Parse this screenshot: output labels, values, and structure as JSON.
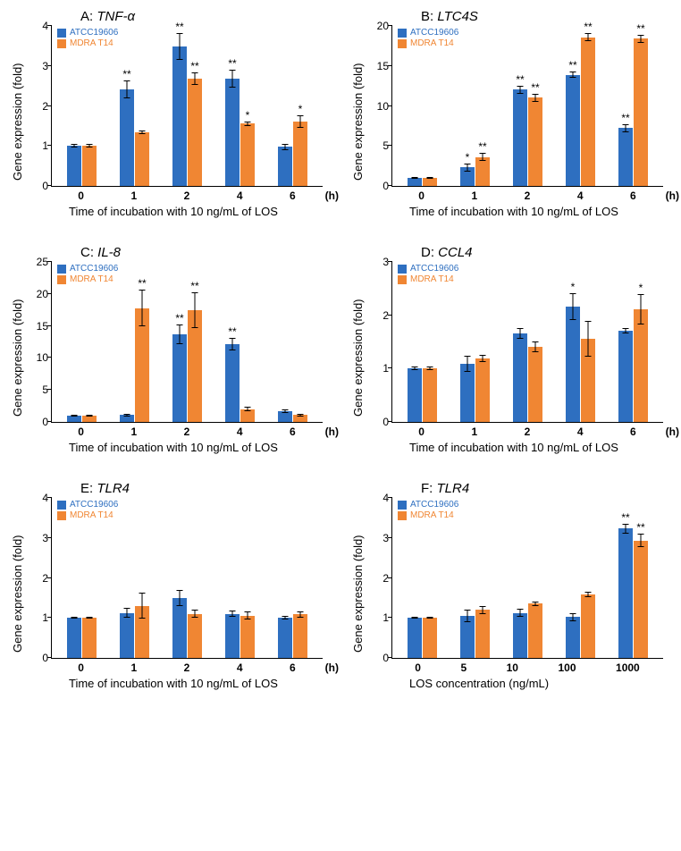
{
  "colors": {
    "series1": "#2e6fc0",
    "series2": "#f08633",
    "axis": "#000000",
    "error": "#000000",
    "legend1_text": "#2e6fc0",
    "legend2_text": "#f08633"
  },
  "legend": {
    "s1": "ATCC19606",
    "s2": "MDRA T14"
  },
  "common": {
    "ylabel": "Gene expression (fold)",
    "xtitle_time": "Time of incubation with 10 ng/mL of LOS",
    "xtitle_conc": "LOS concentration (ng/mL)",
    "x_unit_time": "(h)"
  },
  "panels": [
    {
      "id": "A",
      "title_prefix": "A: ",
      "title_gene": "TNF-α",
      "ymax": 4,
      "ystep": 1,
      "x_cats": [
        "0",
        "1",
        "2",
        "4",
        "6"
      ],
      "x_unit": "(h)",
      "xtitle_key": "xtitle_time",
      "data": [
        {
          "s1": 1.0,
          "e1": 0.05,
          "s2": 1.0,
          "e2": 0.05,
          "sig1": "",
          "sig2": ""
        },
        {
          "s1": 2.4,
          "e1": 0.22,
          "s2": 1.33,
          "e2": 0.05,
          "sig1": "**",
          "sig2": ""
        },
        {
          "s1": 3.47,
          "e1": 0.33,
          "s2": 2.67,
          "e2": 0.15,
          "sig1": "**",
          "sig2": "**"
        },
        {
          "s1": 2.67,
          "e1": 0.23,
          "s2": 1.55,
          "e2": 0.05,
          "sig1": "**",
          "sig2": "*"
        },
        {
          "s1": 0.97,
          "e1": 0.07,
          "s2": 1.6,
          "e2": 0.15,
          "sig1": "",
          "sig2": "*"
        }
      ]
    },
    {
      "id": "B",
      "title_prefix": "B: ",
      "title_gene": "LTC4S",
      "ymax": 20,
      "ystep": 5,
      "x_cats": [
        "0",
        "1",
        "2",
        "4",
        "6"
      ],
      "x_unit": "(h)",
      "xtitle_key": "xtitle_time",
      "data": [
        {
          "s1": 1.0,
          "e1": 0.1,
          "s2": 1.0,
          "e2": 0.1,
          "sig1": "",
          "sig2": ""
        },
        {
          "s1": 2.3,
          "e1": 0.5,
          "s2": 3.6,
          "e2": 0.5,
          "sig1": "*",
          "sig2": "**"
        },
        {
          "s1": 12.0,
          "e1": 0.5,
          "s2": 11.0,
          "e2": 0.5,
          "sig1": "**",
          "sig2": "**"
        },
        {
          "s1": 13.8,
          "e1": 0.4,
          "s2": 18.5,
          "e2": 0.5,
          "sig1": "**",
          "sig2": "**"
        },
        {
          "s1": 7.2,
          "e1": 0.5,
          "s2": 18.3,
          "e2": 0.5,
          "sig1": "**",
          "sig2": "**"
        }
      ]
    },
    {
      "id": "C",
      "title_prefix": "C: ",
      "title_gene": "IL-8",
      "ymax": 25,
      "ystep": 5,
      "x_cats": [
        "0",
        "1",
        "2",
        "4",
        "6"
      ],
      "x_unit": "(h)",
      "xtitle_key": "xtitle_time",
      "data": [
        {
          "s1": 1.0,
          "e1": 0.1,
          "s2": 1.0,
          "e2": 0.1,
          "sig1": "",
          "sig2": ""
        },
        {
          "s1": 1.1,
          "e1": 0.2,
          "s2": 17.7,
          "e2": 2.8,
          "sig1": "",
          "sig2": "**"
        },
        {
          "s1": 13.6,
          "e1": 1.5,
          "s2": 17.4,
          "e2": 2.8,
          "sig1": "**",
          "sig2": "**"
        },
        {
          "s1": 12.1,
          "e1": 1.0,
          "s2": 2.0,
          "e2": 0.3,
          "sig1": "**",
          "sig2": ""
        },
        {
          "s1": 1.7,
          "e1": 0.3,
          "s2": 1.1,
          "e2": 0.2,
          "sig1": "",
          "sig2": ""
        }
      ]
    },
    {
      "id": "D",
      "title_prefix": "D: ",
      "title_gene": "CCL4",
      "ymax": 3,
      "ystep": 1,
      "x_cats": [
        "0",
        "1",
        "2",
        "4",
        "6"
      ],
      "x_unit": "(h)",
      "xtitle_key": "xtitle_time",
      "data": [
        {
          "s1": 1.0,
          "e1": 0.03,
          "s2": 1.0,
          "e2": 0.03,
          "sig1": "",
          "sig2": ""
        },
        {
          "s1": 1.08,
          "e1": 0.15,
          "s2": 1.18,
          "e2": 0.07,
          "sig1": "",
          "sig2": ""
        },
        {
          "s1": 1.65,
          "e1": 0.1,
          "s2": 1.4,
          "e2": 0.1,
          "sig1": "",
          "sig2": ""
        },
        {
          "s1": 2.15,
          "e1": 0.25,
          "s2": 1.55,
          "e2": 0.33,
          "sig1": "*",
          "sig2": ""
        },
        {
          "s1": 1.7,
          "e1": 0.05,
          "s2": 2.1,
          "e2": 0.28,
          "sig1": "",
          "sig2": "*"
        }
      ]
    },
    {
      "id": "E",
      "title_prefix": "E: ",
      "title_gene": "TLR4",
      "ymax": 4,
      "ystep": 1,
      "x_cats": [
        "0",
        "1",
        "2",
        "4",
        "6"
      ],
      "x_unit": "(h)",
      "xtitle_key": "xtitle_time",
      "data": [
        {
          "s1": 1.0,
          "e1": 0.03,
          "s2": 1.0,
          "e2": 0.03,
          "sig1": "",
          "sig2": ""
        },
        {
          "s1": 1.12,
          "e1": 0.12,
          "s2": 1.3,
          "e2": 0.33,
          "sig1": "",
          "sig2": ""
        },
        {
          "s1": 1.5,
          "e1": 0.2,
          "s2": 1.1,
          "e2": 0.1,
          "sig1": "",
          "sig2": ""
        },
        {
          "s1": 1.1,
          "e1": 0.08,
          "s2": 1.05,
          "e2": 0.1,
          "sig1": "",
          "sig2": ""
        },
        {
          "s1": 1.0,
          "e1": 0.05,
          "s2": 1.08,
          "e2": 0.08,
          "sig1": "",
          "sig2": ""
        }
      ]
    },
    {
      "id": "F",
      "title_prefix": "F: ",
      "title_gene": "TLR4",
      "ymax": 4,
      "ystep": 1,
      "x_cats": [
        "0",
        "5",
        "10",
        "100",
        "1000"
      ],
      "x_unit": "",
      "xtitle_key": "xtitle_conc",
      "data": [
        {
          "s1": 1.0,
          "e1": 0.03,
          "s2": 1.0,
          "e2": 0.03,
          "sig1": "",
          "sig2": ""
        },
        {
          "s1": 1.05,
          "e1": 0.15,
          "s2": 1.2,
          "e2": 0.1,
          "sig1": "",
          "sig2": ""
        },
        {
          "s1": 1.12,
          "e1": 0.1,
          "s2": 1.35,
          "e2": 0.05,
          "sig1": "",
          "sig2": ""
        },
        {
          "s1": 1.02,
          "e1": 0.1,
          "s2": 1.58,
          "e2": 0.06,
          "sig1": "",
          "sig2": ""
        },
        {
          "s1": 3.22,
          "e1": 0.12,
          "s2": 2.92,
          "e2": 0.17,
          "sig1": "**",
          "sig2": "**"
        }
      ]
    }
  ]
}
